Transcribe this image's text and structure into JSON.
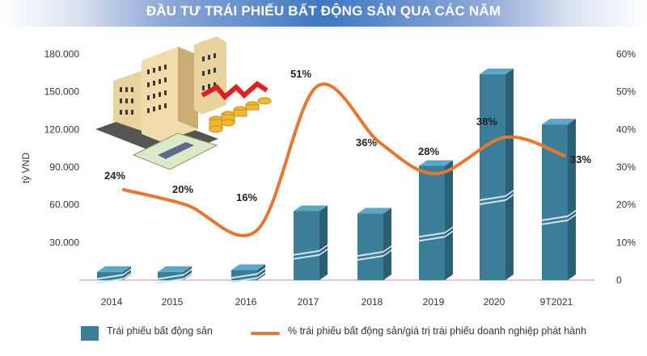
{
  "title": "ĐẦU TƯ TRÁI PHIẾU BẤT ĐỘNG SẢN QUA CÁC NĂM",
  "legend": {
    "bar_label": "Trái phiếu bất động sản",
    "line_label": "% trái phiếu bất động sản/giá trị trái phiếu doanh nghiệp phát hành"
  },
  "colors": {
    "bar_front": "#3a7e9a",
    "bar_side": "#2a5f76",
    "bar_top": "#5aa8c8",
    "line": "#e8772e",
    "baseline": "#d9a0b0",
    "title_bg": "#3f78c4"
  },
  "chart_data": {
    "type": "bar",
    "title": "ĐẦU TƯ TRÁI PHIẾU BẤT ĐỘNG SẢN QUA CÁC NĂM",
    "xlabel": "",
    "ylabel": "tỷ VND",
    "y2label": "%",
    "categories": [
      "2014",
      "2015",
      "2016",
      "2017",
      "2018",
      "2019",
      "2020",
      "9T2021"
    ],
    "series": [
      {
        "name": "Trái phiếu bất động sản",
        "type": "bar",
        "axis": "left",
        "values": [
          6500,
          6500,
          8000,
          55000,
          53000,
          91000,
          164000,
          124000
        ]
      },
      {
        "name": "% trái phiếu bất động sản/giá trị trái phiếu doanh nghiệp phát hành",
        "type": "line",
        "axis": "right",
        "values": [
          24,
          20,
          16,
          51,
          36,
          28,
          38,
          33
        ],
        "labels": [
          "24%",
          "20%",
          "16%",
          "51%",
          "36%",
          "28%",
          "38%",
          "33%"
        ]
      }
    ],
    "ylim": [
      0,
      180000
    ],
    "y2lim": [
      0,
      60
    ],
    "yticks": [
      "180.000",
      "150.000",
      "120.000",
      "90.000",
      "60.000",
      "30.000"
    ],
    "y2ticks": [
      "60%",
      "50%",
      "40%",
      "30%",
      "20%",
      "10%",
      "0"
    ],
    "grid": false,
    "legend_position": "bottom"
  }
}
